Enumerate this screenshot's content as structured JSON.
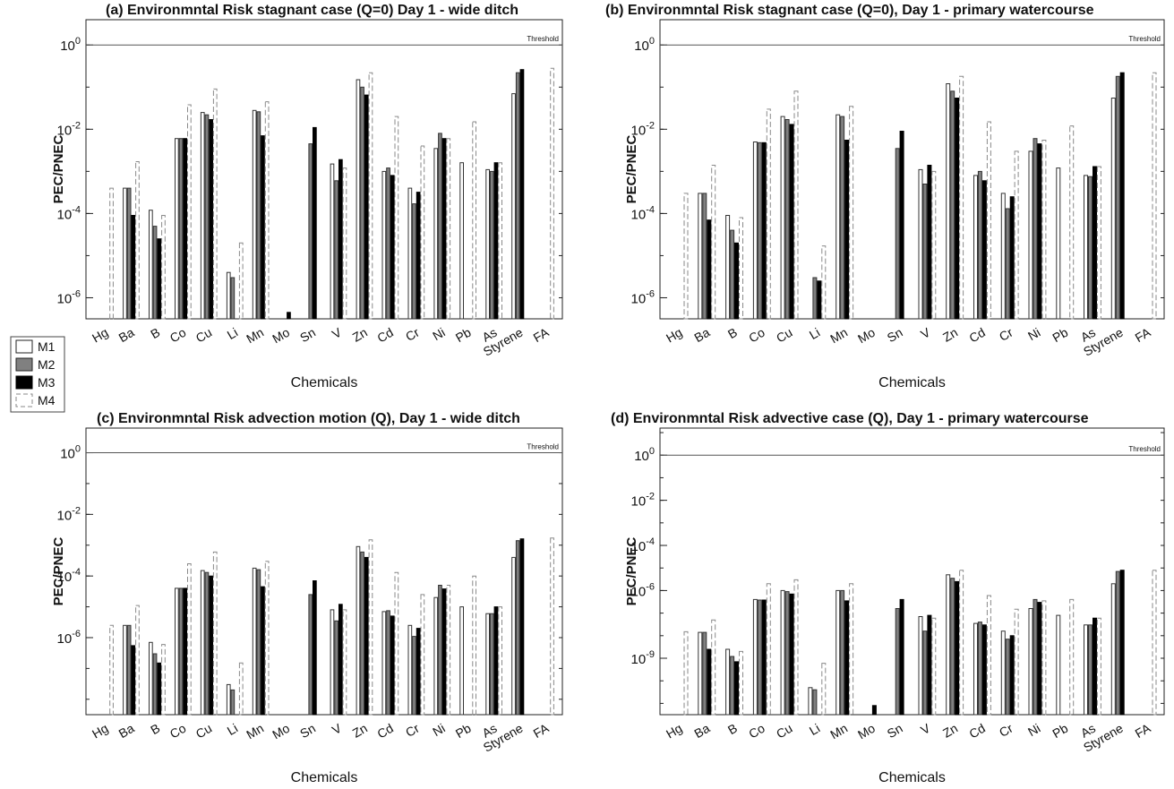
{
  "legend": [
    {
      "name": "M1",
      "fill": "#ffffff",
      "stroke": "#222222",
      "dashed": false
    },
    {
      "name": "M2",
      "fill": "#808080",
      "stroke": "#222222",
      "dashed": false
    },
    {
      "name": "M3",
      "fill": "#000000",
      "stroke": "#000000",
      "dashed": false
    },
    {
      "name": "M4",
      "fill": "#ffffff",
      "stroke": "#888888",
      "dashed": true
    }
  ],
  "chart_data": [
    {
      "type": "bar",
      "title": "(a) Environmntal Risk stagnant case (Q=0) Day 1 - wide ditch",
      "xlabel": "Chemicals",
      "ylabel": "PEC/PNEC",
      "yscale": "log",
      "ylim_exp": [
        -6.5,
        0.6
      ],
      "ticks_exp": [
        -6,
        -4,
        -2,
        0
      ],
      "threshold": {
        "value": 1,
        "label": "Threshold"
      },
      "categories": [
        "Hg",
        "Ba",
        "B",
        "Co",
        "Cu",
        "Li",
        "Mn",
        "Mo",
        "Sn",
        "V",
        "Zn",
        "Cd",
        "Cr",
        "Ni",
        "Pb",
        "As",
        "Styrene",
        "FA"
      ],
      "series": [
        {
          "name": "M1",
          "values": [
            null,
            0.0004,
            0.00012,
            0.006,
            0.025,
            4e-06,
            0.028,
            null,
            null,
            0.0015,
            0.15,
            0.001,
            0.0004,
            0.0035,
            0.0016,
            0.0011,
            0.07,
            null
          ]
        },
        {
          "name": "M2",
          "values": [
            null,
            0.0004,
            5e-05,
            0.006,
            0.022,
            3e-06,
            0.026,
            null,
            0.0045,
            0.0006,
            0.1,
            0.0012,
            0.00017,
            0.008,
            null,
            0.001,
            0.22,
            null
          ]
        },
        {
          "name": "M3",
          "values": [
            null,
            9e-05,
            2.5e-05,
            0.006,
            0.017,
            null,
            0.007,
            4.5e-07,
            0.011,
            0.0019,
            0.065,
            0.0008,
            0.00032,
            0.006,
            null,
            0.0016,
            0.26,
            null
          ]
        },
        {
          "name": "M4",
          "values": [
            0.0004,
            0.0017,
            9e-05,
            0.038,
            0.09,
            2e-05,
            0.045,
            null,
            null,
            0.0012,
            0.22,
            0.02,
            0.004,
            0.006,
            0.015,
            0.0016,
            null,
            0.28
          ]
        }
      ]
    },
    {
      "type": "bar",
      "title": "(b) Environmntal Risk stagnant case (Q=0), Day 1 - primary watercourse",
      "xlabel": "Chemicals",
      "ylabel": "PEC/PNEC",
      "yscale": "log",
      "ylim_exp": [
        -6.5,
        0.6
      ],
      "ticks_exp": [
        -6,
        -4,
        -2,
        0
      ],
      "threshold": {
        "value": 1,
        "label": "Threshold"
      },
      "categories": [
        "Hg",
        "Ba",
        "B",
        "Co",
        "Cu",
        "Li",
        "Mn",
        "Mo",
        "Sn",
        "V",
        "Zn",
        "Cd",
        "Cr",
        "Ni",
        "Pb",
        "As",
        "Styrene",
        "FA"
      ],
      "series": [
        {
          "name": "M1",
          "values": [
            null,
            0.0003,
            9e-05,
            0.005,
            0.02,
            null,
            0.022,
            null,
            null,
            0.0011,
            0.12,
            0.0008,
            0.0003,
            0.003,
            0.0012,
            0.0008,
            0.055,
            null
          ]
        },
        {
          "name": "M2",
          "values": [
            null,
            0.0003,
            4e-05,
            0.0048,
            0.017,
            3e-06,
            0.02,
            null,
            0.0035,
            0.0005,
            0.08,
            0.001,
            0.00013,
            0.006,
            null,
            0.00075,
            0.18,
            null
          ]
        },
        {
          "name": "M3",
          "values": [
            null,
            7e-05,
            2e-05,
            0.0048,
            0.013,
            2.5e-06,
            0.0055,
            null,
            0.009,
            0.0014,
            0.055,
            0.0006,
            0.00025,
            0.0045,
            null,
            0.0013,
            0.22,
            null
          ]
        },
        {
          "name": "M4",
          "values": [
            0.0003,
            0.0014,
            8e-05,
            0.03,
            0.08,
            1.7e-05,
            0.035,
            null,
            null,
            0.001,
            0.18,
            0.015,
            0.003,
            0.0055,
            0.012,
            0.0013,
            null,
            0.22
          ]
        }
      ]
    },
    {
      "type": "bar",
      "title": "(c) Environmntal Risk advection motion (Q), Day 1 - wide ditch",
      "xlabel": "Chemicals",
      "ylabel": "PEC/PNEC",
      "yscale": "log",
      "ylim_exp": [
        -8.5,
        0.8
      ],
      "ticks_exp": [
        -6,
        -4,
        -2,
        0
      ],
      "threshold": {
        "value": 1,
        "label": "Threshold"
      },
      "categories": [
        "Hg",
        "Ba",
        "B",
        "Co",
        "Cu",
        "Li",
        "Mn",
        "Mo",
        "Sn",
        "V",
        "Zn",
        "Cd",
        "Cr",
        "Ni",
        "Pb",
        "As",
        "Styrene",
        "FA"
      ],
      "series": [
        {
          "name": "M1",
          "values": [
            null,
            2.5e-06,
            7e-07,
            4e-05,
            0.00015,
            3e-08,
            0.00018,
            null,
            null,
            8e-06,
            0.0009,
            7e-06,
            2.5e-06,
            2e-05,
            1e-05,
            6e-06,
            0.0004,
            null
          ]
        },
        {
          "name": "M2",
          "values": [
            null,
            2.5e-06,
            3e-07,
            4e-05,
            0.00013,
            2e-08,
            0.00016,
            null,
            2.5e-05,
            3.5e-06,
            0.0006,
            7.5e-06,
            1.1e-06,
            5e-05,
            null,
            6e-06,
            0.0014,
            null
          ]
        },
        {
          "name": "M3",
          "values": [
            null,
            5.5e-07,
            1.5e-07,
            4e-05,
            0.0001,
            null,
            4.5e-05,
            null,
            7e-05,
            1.2e-05,
            0.0004,
            5e-06,
            2e-06,
            3.8e-05,
            null,
            1e-05,
            0.0016,
            null
          ]
        },
        {
          "name": "M4",
          "values": [
            2.5e-06,
            1.1e-05,
            6e-07,
            0.00025,
            0.0006,
            1.5e-07,
            0.0003,
            null,
            null,
            8e-06,
            0.0015,
            0.00013,
            2.5e-05,
            5e-05,
            0.0001,
            1e-05,
            null,
            0.0017
          ]
        }
      ]
    },
    {
      "type": "bar",
      "title": "(d) Environmntal Risk advective case (Q), Day 1  - primary watercourse",
      "xlabel": "Chemicals",
      "ylabel": "PEC/PNEC",
      "yscale": "log",
      "ylim_exp": [
        -11.5,
        1.2
      ],
      "ticks_exp": [
        -9,
        -6,
        -4,
        -2,
        0
      ],
      "threshold": {
        "value": 1,
        "label": "Threshold"
      },
      "categories": [
        "Hg",
        "Ba",
        "B",
        "Co",
        "Cu",
        "Li",
        "Mn",
        "Mo",
        "Sn",
        "V",
        "Zn",
        "Cd",
        "Cr",
        "Ni",
        "Pb",
        "As",
        "Styrene",
        "FA"
      ],
      "series": [
        {
          "name": "M1",
          "values": [
            null,
            1.4e-08,
            2.5e-09,
            4e-07,
            1e-06,
            5e-11,
            1e-06,
            null,
            null,
            7e-08,
            5e-06,
            3.5e-08,
            1.6e-08,
            1.6e-07,
            8e-08,
            3e-08,
            2e-06,
            null
          ]
        },
        {
          "name": "M2",
          "values": [
            null,
            1.4e-08,
            1.2e-09,
            3.8e-07,
            9e-07,
            4e-11,
            1e-06,
            null,
            1.6e-07,
            1.6e-08,
            3.5e-06,
            4e-08,
            7e-09,
            4e-07,
            null,
            3e-08,
            7e-06,
            null
          ]
        },
        {
          "name": "M3",
          "values": [
            null,
            2.5e-09,
            7e-10,
            3.8e-07,
            7e-07,
            null,
            3.5e-07,
            8e-12,
            4e-07,
            8e-08,
            2.5e-06,
            3e-08,
            1e-08,
            3e-07,
            null,
            6e-08,
            8e-06,
            null
          ]
        },
        {
          "name": "M4",
          "values": [
            1.5e-08,
            5e-08,
            2e-09,
            2e-06,
            3e-06,
            6e-10,
            2e-06,
            null,
            null,
            6e-08,
            8e-06,
            6e-07,
            1.5e-07,
            3.5e-07,
            4e-07,
            6e-08,
            null,
            8e-06
          ]
        }
      ]
    }
  ]
}
